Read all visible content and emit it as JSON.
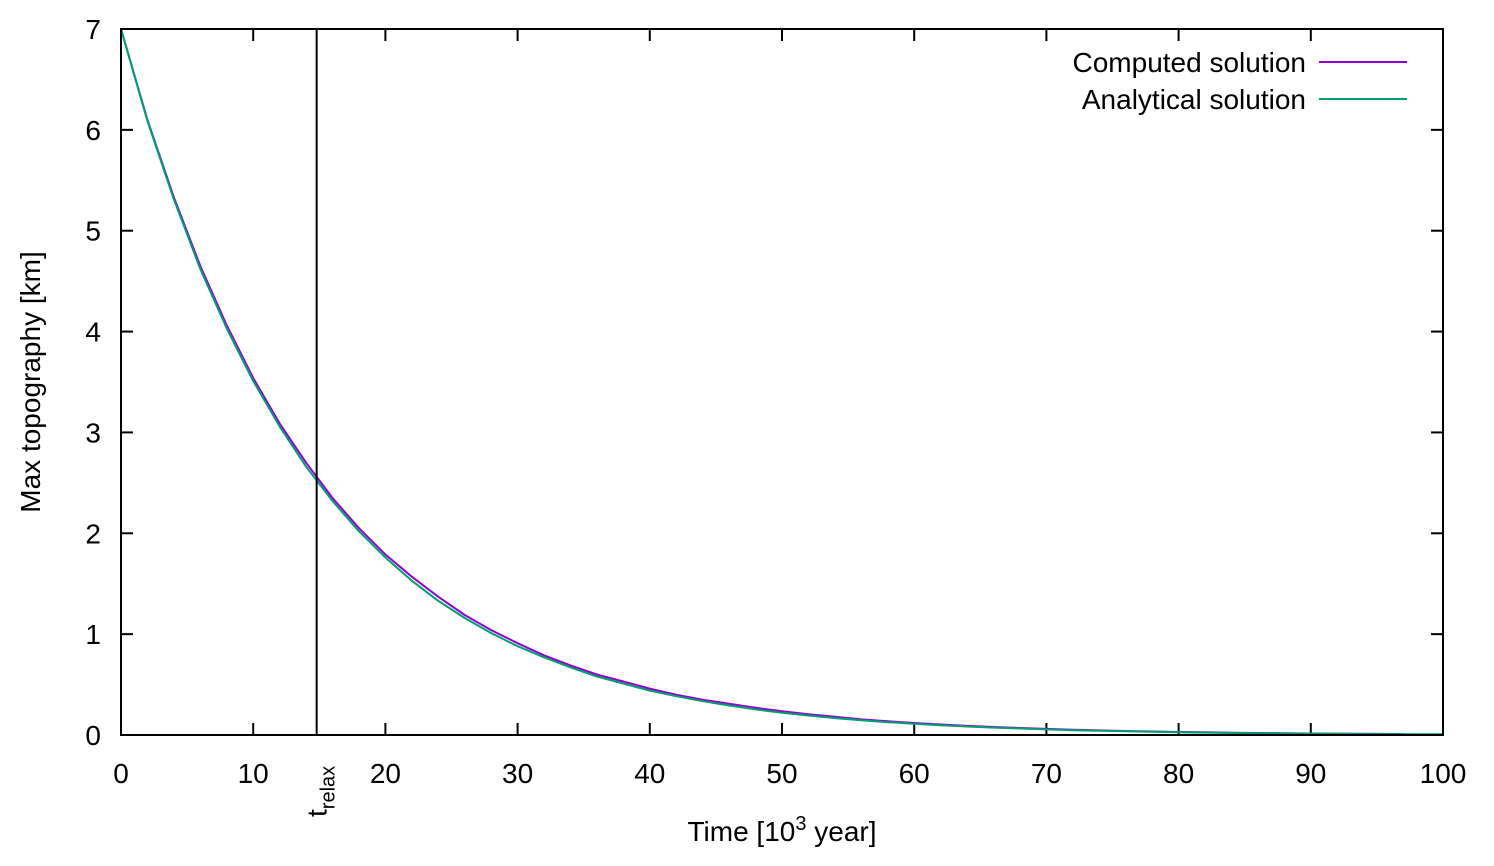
{
  "chart_data": {
    "type": "line",
    "title": "",
    "xlabel": {
      "prefix": "Time [10",
      "superscript": "3",
      "suffix": " year]"
    },
    "ylabel": "Max topography [km]",
    "xlim": [
      0,
      100
    ],
    "ylim": [
      0,
      7
    ],
    "xticks": [
      0,
      10,
      20,
      30,
      40,
      50,
      60,
      70,
      80,
      90,
      100
    ],
    "yticks": [
      0,
      1,
      2,
      3,
      4,
      5,
      6,
      7
    ],
    "grid": false,
    "legend_position": "top-right",
    "marker": {
      "x": 14.8,
      "label": {
        "base": "t",
        "subscript": "relax"
      }
    },
    "series": [
      {
        "name": "Computed solution",
        "color": "#9400d3",
        "x": [
          0,
          2,
          4,
          6,
          8,
          10,
          12,
          14,
          16,
          18,
          20,
          22,
          24,
          26,
          28,
          30,
          32,
          34,
          36,
          38,
          40,
          42,
          44,
          46,
          48,
          50,
          52,
          54,
          56,
          58,
          60,
          62,
          64,
          66,
          68,
          70,
          72,
          74,
          76,
          78,
          80,
          82,
          84,
          86,
          88,
          90,
          92,
          94,
          97
        ],
        "y": [
          7.0,
          6.1,
          5.33,
          4.65,
          4.06,
          3.54,
          3.09,
          2.7,
          2.35,
          2.05,
          1.79,
          1.57,
          1.37,
          1.19,
          1.04,
          0.91,
          0.79,
          0.69,
          0.6,
          0.53,
          0.46,
          0.4,
          0.35,
          0.31,
          0.27,
          0.235,
          0.205,
          0.18,
          0.155,
          0.136,
          0.119,
          0.104,
          0.09,
          0.079,
          0.069,
          0.06,
          0.052,
          0.046,
          0.04,
          0.035,
          0.03,
          0.027,
          0.023,
          0.02,
          0.018,
          0.015,
          0.013,
          0.012,
          0.009
        ]
      },
      {
        "name": "Analytical solution",
        "color": "#009e73",
        "x": [
          0,
          2,
          4,
          6,
          8,
          10,
          12,
          14,
          16,
          18,
          20,
          22,
          24,
          26,
          28,
          30,
          32,
          34,
          36,
          38,
          40,
          42,
          44,
          46,
          48,
          50,
          52,
          54,
          56,
          58,
          60,
          62,
          64,
          66,
          68,
          70,
          72,
          74,
          76,
          78,
          80,
          82,
          84,
          86,
          88,
          90,
          92,
          94,
          96,
          98,
          100
        ],
        "y": [
          7.0,
          6.09,
          5.31,
          4.62,
          4.03,
          3.51,
          3.06,
          2.66,
          2.32,
          2.02,
          1.76,
          1.53,
          1.33,
          1.16,
          1.01,
          0.88,
          0.77,
          0.67,
          0.58,
          0.51,
          0.44,
          0.385,
          0.335,
          0.292,
          0.254,
          0.221,
          0.193,
          0.168,
          0.146,
          0.127,
          0.111,
          0.097,
          0.084,
          0.073,
          0.064,
          0.056,
          0.048,
          0.042,
          0.037,
          0.032,
          0.028,
          0.024,
          0.021,
          0.018,
          0.016,
          0.014,
          0.012,
          0.01,
          0.009,
          0.008,
          0.007
        ]
      }
    ]
  }
}
